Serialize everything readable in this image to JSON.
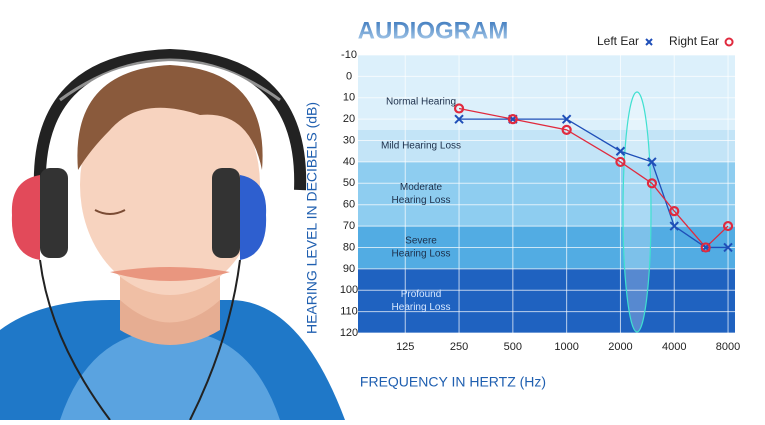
{
  "chart_data": {
    "type": "line",
    "title": "AUDIOGRAM",
    "x_label": "FREQUENCY IN HERTZ (Hz)",
    "y_label": "HEARING LEVEL IN DECIBELS (dB)",
    "log_x": true,
    "y_inverted": true,
    "xlim": [
      68,
      8750
    ],
    "xticks": [
      125,
      250,
      500,
      1000,
      2000,
      4000,
      8000
    ],
    "ylim": [
      -10,
      120
    ],
    "yticks": [
      -10,
      0,
      10,
      20,
      30,
      40,
      50,
      60,
      70,
      80,
      90,
      100,
      110,
      120
    ],
    "grid": true,
    "legend": "top-right",
    "bands": [
      {
        "lines": [
          "Normal Hearing"
        ],
        "range": [
          -10,
          25
        ],
        "color": "#dcf0fb"
      },
      {
        "lines": [
          "Mild Hearing Loss"
        ],
        "range": [
          25,
          40
        ],
        "color": "#c3e4f7"
      },
      {
        "lines": [
          "Moderate",
          "Hearing Loss"
        ],
        "range": [
          40,
          70
        ],
        "color": "#8ecdf0"
      },
      {
        "lines": [
          "Severe",
          "Hearing Loss"
        ],
        "range": [
          70,
          90
        ],
        "color": "#52ace3"
      },
      {
        "lines": [
          "Profound",
          "Hearing Loss"
        ],
        "range": [
          90,
          120
        ],
        "color": "#1f62c0"
      }
    ],
    "x": [
      250,
      500,
      1000,
      2000,
      3000,
      4000,
      6000,
      8000
    ],
    "series": [
      {
        "name": "Left Ear",
        "color": "#1f4fb8",
        "marker": "x",
        "values": [
          20,
          20,
          20,
          35,
          40,
          70,
          80,
          80
        ]
      },
      {
        "name": "Right Ear",
        "color": "#e02a3e",
        "marker": "o",
        "values": [
          15,
          20,
          25,
          40,
          50,
          63,
          80,
          70
        ]
      }
    ]
  }
}
